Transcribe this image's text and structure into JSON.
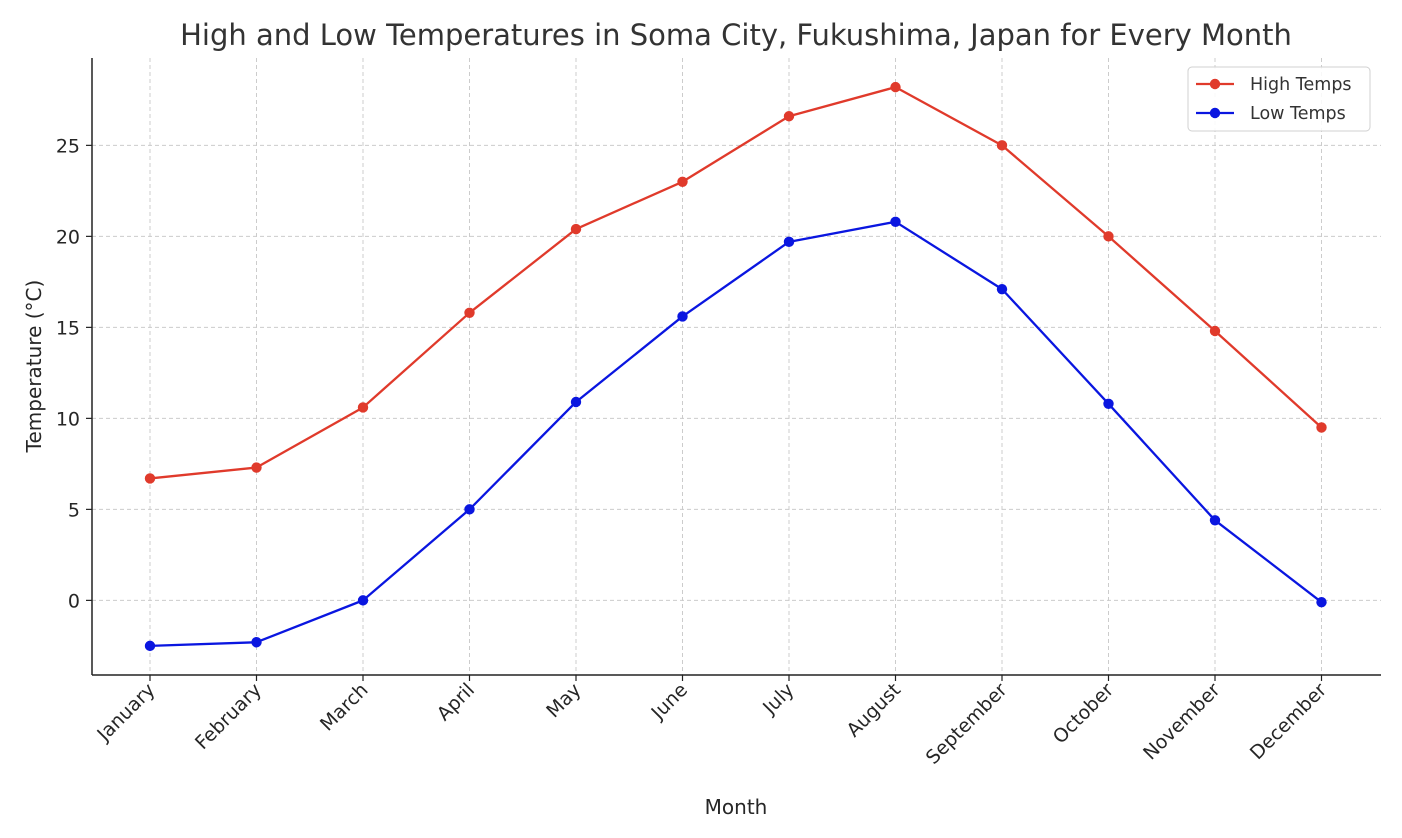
{
  "chart_data": {
    "type": "line",
    "title": "High and Low Temperatures in Soma City, Fukushima, Japan for Every Month",
    "xlabel": "Month",
    "ylabel": "Temperature (°C)",
    "categories": [
      "January",
      "February",
      "March",
      "April",
      "May",
      "June",
      "July",
      "August",
      "September",
      "October",
      "November",
      "December"
    ],
    "series": [
      {
        "name": "High Temps",
        "color": "#e03a2b",
        "values": [
          6.7,
          7.3,
          10.6,
          15.8,
          20.4,
          23.0,
          26.6,
          28.2,
          25.0,
          20.0,
          14.8,
          9.5
        ]
      },
      {
        "name": "Low Temps",
        "color": "#0a16e0",
        "values": [
          -2.5,
          -2.3,
          0.0,
          5.0,
          10.9,
          15.6,
          19.7,
          20.8,
          17.1,
          10.8,
          4.4,
          -0.1
        ]
      }
    ],
    "ylim": [
      -4.1,
      29.8
    ],
    "yticks": [
      0,
      5,
      10,
      15,
      20,
      25
    ],
    "grid": true,
    "legend_position": "top-right"
  }
}
